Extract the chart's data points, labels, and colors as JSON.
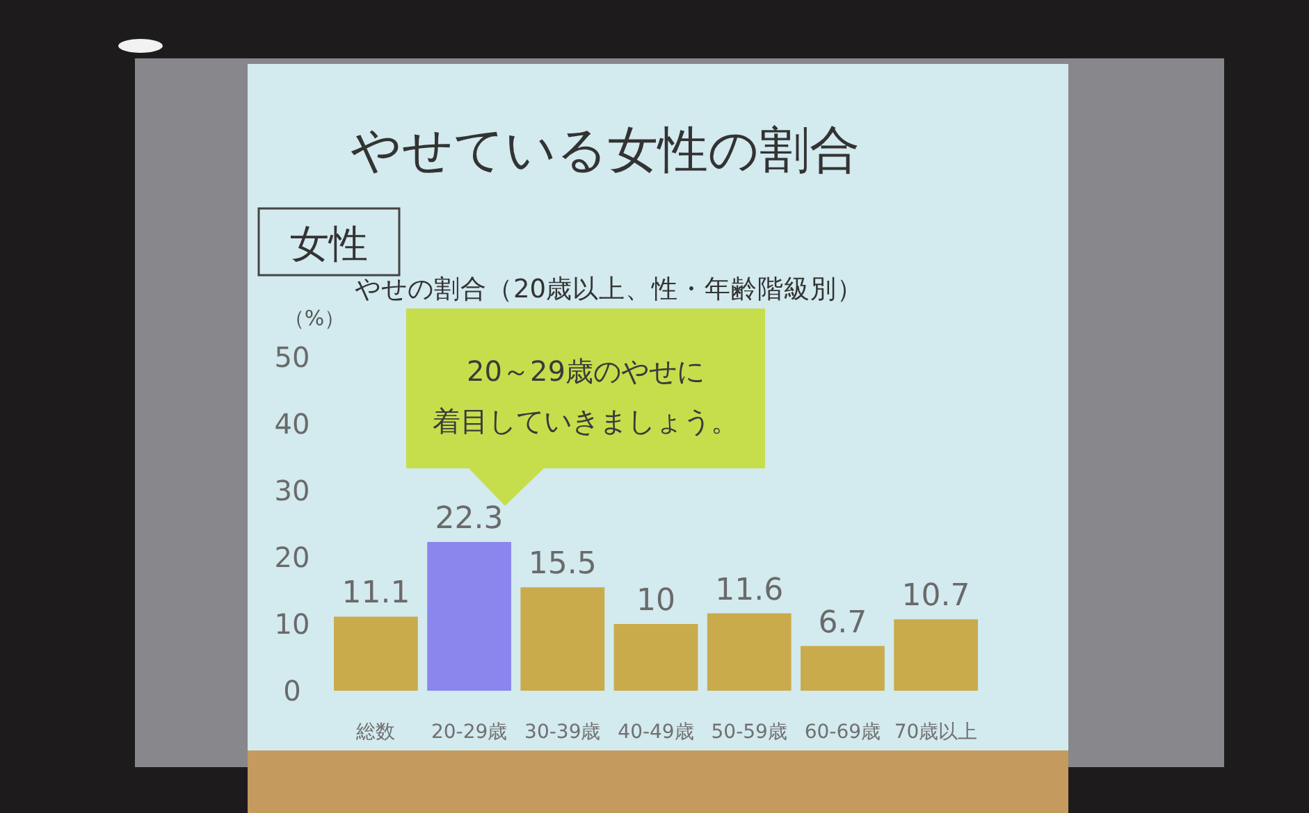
{
  "chart_data": {
    "type": "bar",
    "title": "やせている女性の割合",
    "subtitle": "やせの割合（20歳以上、性・年齢階級別）",
    "ylabel": "（%）",
    "annotations": [
      "女性",
      "20～29歳のやせに",
      "着目していきましょう。"
    ],
    "categories": [
      "総数",
      "20-29歳",
      "30-39歳",
      "40-49歳",
      "50-59歳",
      "60-69歳",
      "70歳以上"
    ],
    "values": [
      11.1,
      22.3,
      15.5,
      10,
      11.6,
      6.7,
      10.7
    ],
    "colors": [
      "#c9ab4c",
      "#8a86ee",
      "#c9ab4c",
      "#c9ab4c",
      "#c9ab4c",
      "#c9ab4c",
      "#c9ab4c"
    ],
    "ylim": [
      0,
      50
    ],
    "yticks": [
      0,
      10,
      20,
      30,
      40,
      50
    ],
    "data_labels": true
  }
}
